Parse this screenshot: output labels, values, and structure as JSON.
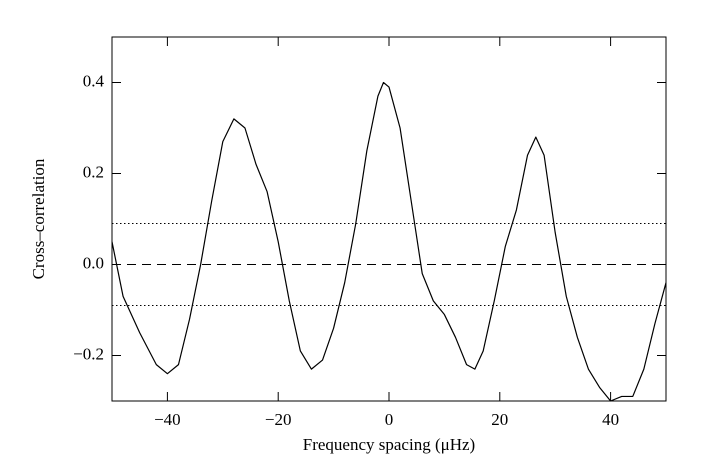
{
  "chart_data": {
    "type": "line",
    "xlabel": "Frequency spacing (μHz)",
    "ylabel": "Cross–correlation",
    "xlim": [
      -50,
      50
    ],
    "ylim": [
      -0.3,
      0.5
    ],
    "xticks": [
      {
        "value": -40,
        "label": "−40"
      },
      {
        "value": -20,
        "label": "−20"
      },
      0,
      20,
      40
    ],
    "yticks": [
      {
        "value": -0.2,
        "label": "−0.2"
      },
      {
        "value": 0,
        "label": "0.0"
      },
      0.2,
      0.4
    ],
    "reference_lines": [
      {
        "value": 0.09,
        "style": "dotted"
      },
      {
        "value": 0,
        "style": "dashed"
      },
      {
        "value": -0.09,
        "style": "dotted"
      }
    ],
    "x": [
      -50,
      -48,
      -45,
      -42,
      -40,
      -38,
      -36,
      -34,
      -32,
      -30,
      -28,
      -26,
      -24,
      -22,
      -20,
      -18,
      -16,
      -14,
      -12,
      -10,
      -8,
      -6,
      -4,
      -2,
      -1,
      0,
      2,
      4,
      6,
      8,
      10,
      12,
      14,
      15.5,
      17,
      19,
      21,
      23,
      25,
      26.5,
      28,
      30,
      32,
      34,
      36,
      38,
      40,
      42,
      44,
      46,
      48,
      50
    ],
    "series": [
      {
        "color": "#000000",
        "values": [
          0.05,
          -0.07,
          -0.15,
          -0.22,
          -0.24,
          -0.22,
          -0.12,
          0.0,
          0.14,
          0.27,
          0.32,
          0.3,
          0.22,
          0.16,
          0.05,
          -0.08,
          -0.19,
          -0.23,
          -0.21,
          -0.14,
          -0.04,
          0.09,
          0.25,
          0.37,
          0.4,
          0.39,
          0.3,
          0.14,
          -0.02,
          -0.08,
          -0.11,
          -0.16,
          -0.22,
          -0.23,
          -0.19,
          -0.08,
          0.04,
          0.12,
          0.24,
          0.28,
          0.24,
          0.07,
          -0.07,
          -0.16,
          -0.23,
          -0.27,
          -0.3,
          -0.29,
          -0.29,
          -0.23,
          -0.13,
          -0.04
        ]
      }
    ]
  }
}
